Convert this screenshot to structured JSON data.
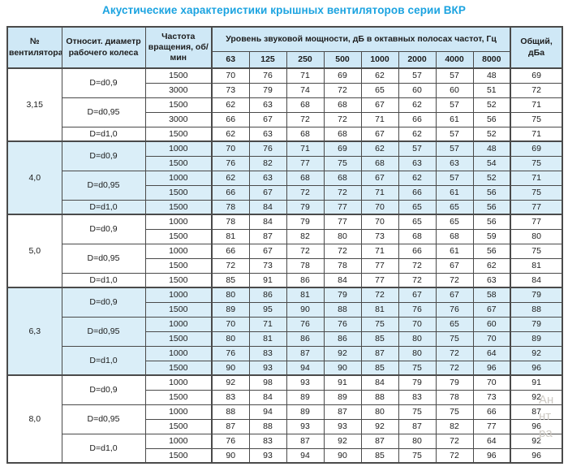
{
  "title": "Акустические характеристики крышных вентиляторов серии ВКР",
  "colors": {
    "title": "#1ba3e0",
    "header_bg": "#cfe8f6",
    "shaded_bg": "#daeef8",
    "border": "#4a4a4a"
  },
  "watermark": {
    "lines": [
      "Ан",
      "нт",
      "ра"
    ]
  },
  "table": {
    "header": {
      "fan": "№ вентилятора",
      "diameter": "Относит. диаметр рабочего колеса",
      "speed": "Частота вращения, об/мин",
      "spl": "Уровень звуковой мощности, дБ в октавных полосах частот, Гц",
      "freqs": [
        "63",
        "125",
        "250",
        "500",
        "1000",
        "2000",
        "4000",
        "8000"
      ],
      "total": "Общий, дБа"
    },
    "groups": [
      {
        "fan": "3,15",
        "shaded": false,
        "sub": [
          {
            "d": "D=d0,9",
            "rows": [
              {
                "rpm": "1500",
                "levels": [
                  70,
                  76,
                  71,
                  69,
                  62,
                  57,
                  57,
                  48
                ],
                "total": 69
              },
              {
                "rpm": "3000",
                "levels": [
                  73,
                  79,
                  74,
                  72,
                  65,
                  60,
                  60,
                  51
                ],
                "total": 72
              }
            ]
          },
          {
            "d": "D=d0,95",
            "rows": [
              {
                "rpm": "1500",
                "levels": [
                  62,
                  63,
                  68,
                  68,
                  67,
                  62,
                  57,
                  52
                ],
                "total": 71
              },
              {
                "rpm": "3000",
                "levels": [
                  66,
                  67,
                  72,
                  72,
                  71,
                  66,
                  61,
                  56
                ],
                "total": 75
              }
            ]
          },
          {
            "d": "D=d1,0",
            "rows": [
              {
                "rpm": "1500",
                "levels": [
                  62,
                  63,
                  68,
                  68,
                  67,
                  62,
                  57,
                  52
                ],
                "total": 71
              }
            ]
          }
        ]
      },
      {
        "fan": "4,0",
        "shaded": true,
        "sub": [
          {
            "d": "D=d0,9",
            "rows": [
              {
                "rpm": "1000",
                "levels": [
                  70,
                  76,
                  71,
                  69,
                  62,
                  57,
                  57,
                  48
                ],
                "total": 69
              },
              {
                "rpm": "1500",
                "levels": [
                  76,
                  82,
                  77,
                  75,
                  68,
                  63,
                  63,
                  54
                ],
                "total": 75
              }
            ]
          },
          {
            "d": "D=d0,95",
            "rows": [
              {
                "rpm": "1000",
                "levels": [
                  62,
                  63,
                  68,
                  68,
                  67,
                  62,
                  57,
                  52
                ],
                "total": 71
              },
              {
                "rpm": "1500",
                "levels": [
                  66,
                  67,
                  72,
                  72,
                  71,
                  66,
                  61,
                  56
                ],
                "total": 75
              }
            ]
          },
          {
            "d": "D=d1,0",
            "rows": [
              {
                "rpm": "1500",
                "levels": [
                  78,
                  84,
                  79,
                  77,
                  70,
                  65,
                  65,
                  56
                ],
                "total": 77
              }
            ]
          }
        ]
      },
      {
        "fan": "5,0",
        "shaded": false,
        "sub": [
          {
            "d": "D=d0,9",
            "rows": [
              {
                "rpm": "1000",
                "levels": [
                  78,
                  84,
                  79,
                  77,
                  70,
                  65,
                  65,
                  56
                ],
                "total": 77
              },
              {
                "rpm": "1500",
                "levels": [
                  81,
                  87,
                  82,
                  80,
                  73,
                  68,
                  68,
                  59
                ],
                "total": 80
              }
            ]
          },
          {
            "d": "D=d0,95",
            "rows": [
              {
                "rpm": "1000",
                "levels": [
                  66,
                  67,
                  72,
                  72,
                  71,
                  66,
                  61,
                  56
                ],
                "total": 75
              },
              {
                "rpm": "1500",
                "levels": [
                  72,
                  73,
                  78,
                  78,
                  77,
                  72,
                  67,
                  62
                ],
                "total": 81
              }
            ]
          },
          {
            "d": "D=d1,0",
            "rows": [
              {
                "rpm": "1500",
                "levels": [
                  85,
                  91,
                  86,
                  84,
                  77,
                  72,
                  72,
                  63
                ],
                "total": 84
              }
            ]
          }
        ]
      },
      {
        "fan": "6,3",
        "shaded": true,
        "sub": [
          {
            "d": "D=d0,9",
            "rows": [
              {
                "rpm": "1000",
                "levels": [
                  80,
                  86,
                  81,
                  79,
                  72,
                  67,
                  67,
                  58
                ],
                "total": 79
              },
              {
                "rpm": "1500",
                "levels": [
                  89,
                  95,
                  90,
                  88,
                  81,
                  76,
                  76,
                  67
                ],
                "total": 88
              }
            ]
          },
          {
            "d": "D=d0,95",
            "rows": [
              {
                "rpm": "1000",
                "levels": [
                  70,
                  71,
                  76,
                  76,
                  75,
                  70,
                  65,
                  60
                ],
                "total": 79
              },
              {
                "rpm": "1500",
                "levels": [
                  80,
                  81,
                  86,
                  86,
                  85,
                  80,
                  75,
                  70
                ],
                "total": 89
              }
            ]
          },
          {
            "d": "D=d1,0",
            "rows": [
              {
                "rpm": "1000",
                "levels": [
                  76,
                  83,
                  87,
                  92,
                  87,
                  80,
                  72,
                  64
                ],
                "total": 92
              },
              {
                "rpm": "1500",
                "levels": [
                  90,
                  93,
                  94,
                  90,
                  85,
                  75,
                  72,
                  96
                ],
                "total": 96
              }
            ]
          }
        ]
      },
      {
        "fan": "8,0",
        "shaded": false,
        "sub": [
          {
            "d": "D=d0,9",
            "rows": [
              {
                "rpm": "1000",
                "levels": [
                  92,
                  98,
                  93,
                  91,
                  84,
                  79,
                  79,
                  70
                ],
                "total": 91
              },
              {
                "rpm": "1500",
                "levels": [
                  83,
                  84,
                  89,
                  89,
                  88,
                  83,
                  78,
                  73
                ],
                "total": 92
              }
            ]
          },
          {
            "d": "D=d0,95",
            "rows": [
              {
                "rpm": "1000",
                "levels": [
                  88,
                  94,
                  89,
                  87,
                  80,
                  75,
                  75,
                  66
                ],
                "total": 87
              },
              {
                "rpm": "1500",
                "levels": [
                  87,
                  88,
                  93,
                  93,
                  92,
                  87,
                  82,
                  77
                ],
                "total": 96
              }
            ]
          },
          {
            "d": "D=d1,0",
            "rows": [
              {
                "rpm": "1000",
                "levels": [
                  76,
                  83,
                  87,
                  92,
                  87,
                  80,
                  72,
                  64
                ],
                "total": 92
              },
              {
                "rpm": "1500",
                "levels": [
                  90,
                  93,
                  94,
                  90,
                  85,
                  75,
                  72,
                  96
                ],
                "total": 96
              }
            ]
          }
        ]
      }
    ]
  }
}
